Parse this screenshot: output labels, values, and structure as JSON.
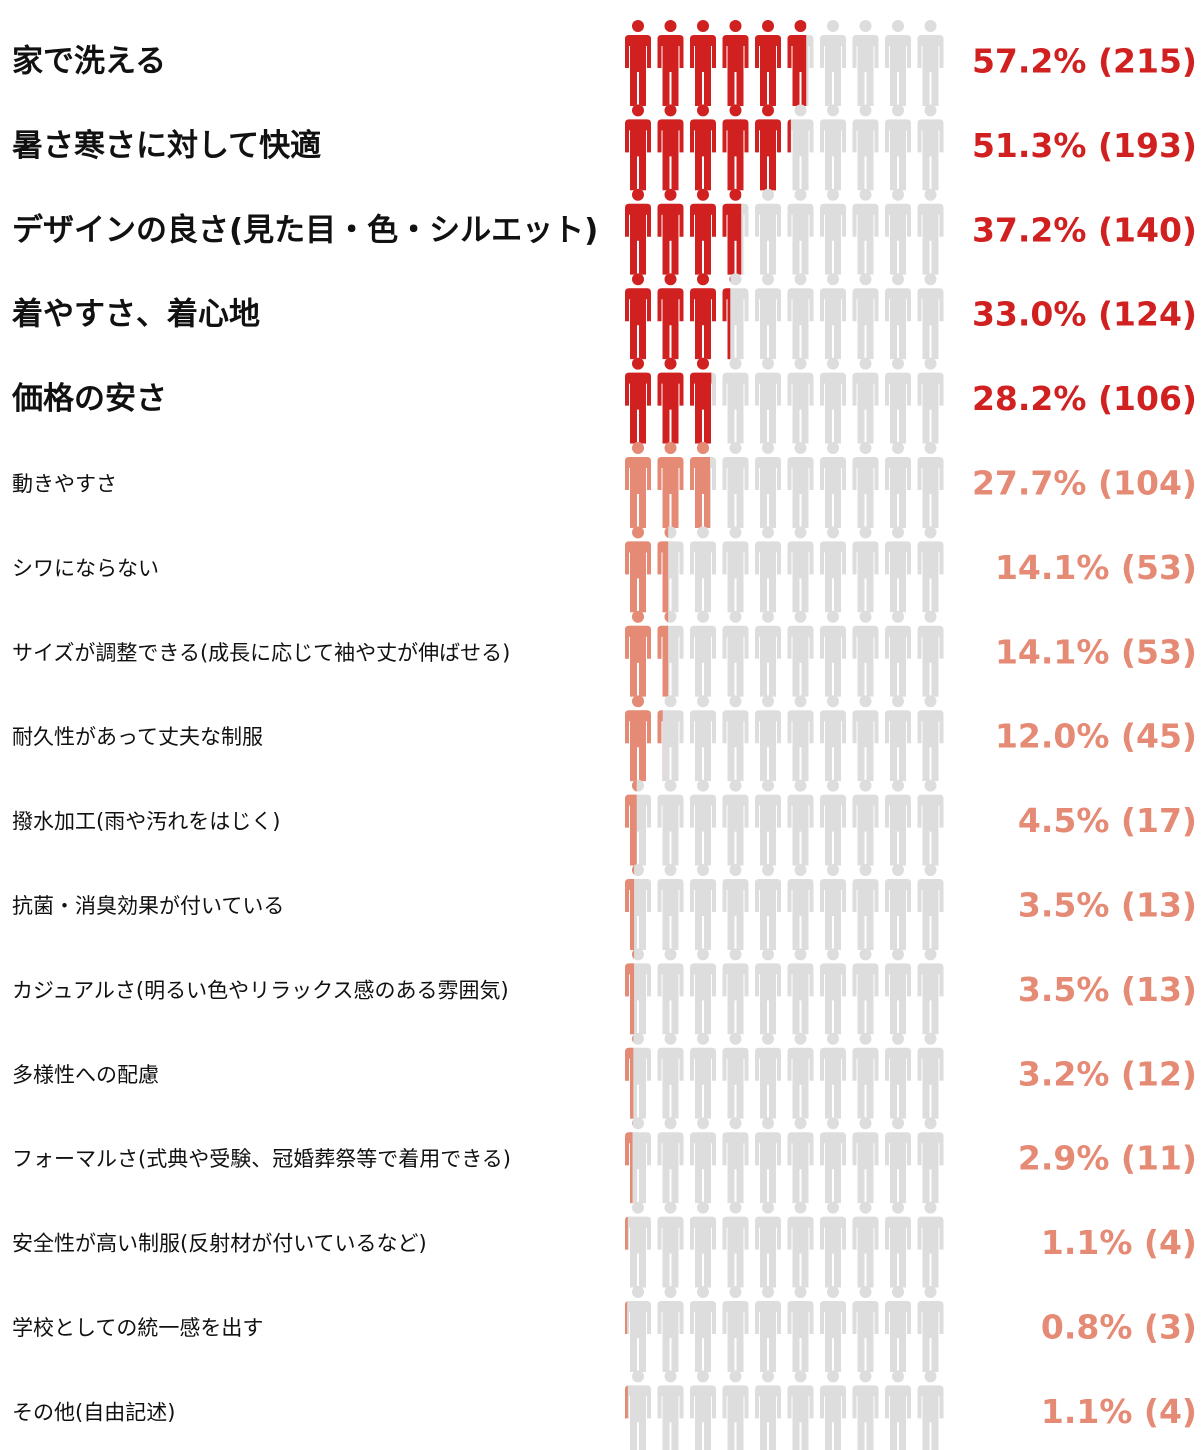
{
  "chart_data": {
    "type": "pictogram",
    "categories": [
      "家で洗える",
      "暑さ寒さに対して快適",
      "デザインの良さ(見た目・色・シルエット)",
      "着やすさ、着心地",
      "価格の安さ",
      "動きやすさ",
      "シワにならない",
      "サイズが調整できる(成長に応じて袖や丈が伸ばせる)",
      "耐久性があって丈夫な制服",
      "撥水加工(雨や汚れをはじく)",
      "抗菌・消臭効果が付いている",
      "カジュアルさ(明るい色やリラックス感のある雰囲気)",
      "多様性への配慮",
      "フォーマルさ(式典や受験、冠婚葬祭等で着用できる)",
      "安全性が高い制服(反射材が付いているなど)",
      "学校としての統一感を出す",
      "その他(自由記述)"
    ],
    "values": [
      57.2,
      51.3,
      37.2,
      33.0,
      28.2,
      27.7,
      14.1,
      14.1,
      12.0,
      4.5,
      3.5,
      3.5,
      3.2,
      2.9,
      1.1,
      0.8,
      1.1
    ],
    "value_labels": [
      "57.2% (215)",
      "51.3% (193)",
      "37.2% (140)",
      "33.0% (124)",
      "28.2% (106)",
      "27.7% (104)",
      "14.1% (53)",
      "14.1% (53)",
      "12.0% (45)",
      "4.5% (17)",
      "3.5% (13)",
      "3.5% (13)",
      "3.2% (12)",
      "2.9% (11)",
      "1.1% (4)",
      "0.8% (3)",
      "1.1% (4)"
    ],
    "colors": [
      "#d0201f",
      "#d0201f",
      "#d0201f",
      "#d0201f",
      "#d0201f",
      "#e58a74",
      "#e58a74",
      "#e58a74",
      "#e58a74",
      "#e58a74",
      "#e58a74",
      "#e58a74",
      "#e58a74",
      "#e58a74",
      "#e58a74",
      "#e58a74",
      "#e58a74"
    ],
    "background_color": "#dddddd",
    "xlim": [
      0,
      100
    ]
  }
}
